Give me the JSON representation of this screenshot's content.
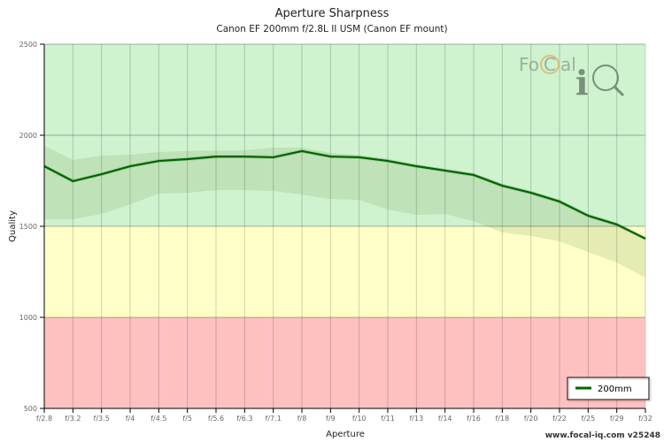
{
  "chart_data": {
    "type": "line",
    "title": "Aperture Sharpness",
    "subtitle": "Canon EF 200mm f/2.8L II USM (Canon EF mount)",
    "xlabel": "Aperture",
    "ylabel": "Quality",
    "ylim": [
      500,
      2500
    ],
    "yticks": [
      500,
      1000,
      1500,
      2000,
      2500
    ],
    "categories": [
      "f/2.8",
      "f/3.2",
      "f/3.5",
      "f/4",
      "f/4.5",
      "f/5",
      "f/5.6",
      "f/6.3",
      "f/7.1",
      "f/8",
      "f/9",
      "f/10",
      "f/11",
      "f/13",
      "f/14",
      "f/16",
      "f/18",
      "f/20",
      "f/22",
      "f/25",
      "f/29",
      "f/32"
    ],
    "zones": [
      {
        "from": 500,
        "to": 1000,
        "color": "#ffc0c0"
      },
      {
        "from": 1000,
        "to": 1500,
        "color": "#ffffc8"
      },
      {
        "from": 1500,
        "to": 2500,
        "color": "#cff2cf"
      }
    ],
    "series": [
      {
        "name": "200mm",
        "color": "#006400",
        "values": [
          1830,
          1748,
          1786,
          1830,
          1859,
          1869,
          1883,
          1883,
          1879,
          1913,
          1883,
          1879,
          1859,
          1830,
          1806,
          1782,
          1723,
          1684,
          1636,
          1558,
          1510,
          1432
        ],
        "band_upper": [
          1942,
          1864,
          1888,
          1893,
          1908,
          1913,
          1917,
          1917,
          1932,
          1932,
          1903,
          1890,
          1870,
          1840,
          1815,
          1792,
          1733,
          1694,
          1646,
          1568,
          1520,
          1442
        ],
        "band_lower": [
          1539,
          1539,
          1568,
          1621,
          1680,
          1684,
          1699,
          1699,
          1694,
          1675,
          1650,
          1645,
          1592,
          1563,
          1568,
          1529,
          1466,
          1447,
          1417,
          1359,
          1301,
          1218
        ]
      }
    ],
    "legend_position": "bottom-right",
    "grid": true
  },
  "logo_text": "FoCal iQ",
  "credit": "www.focal-iq.com  v25248"
}
